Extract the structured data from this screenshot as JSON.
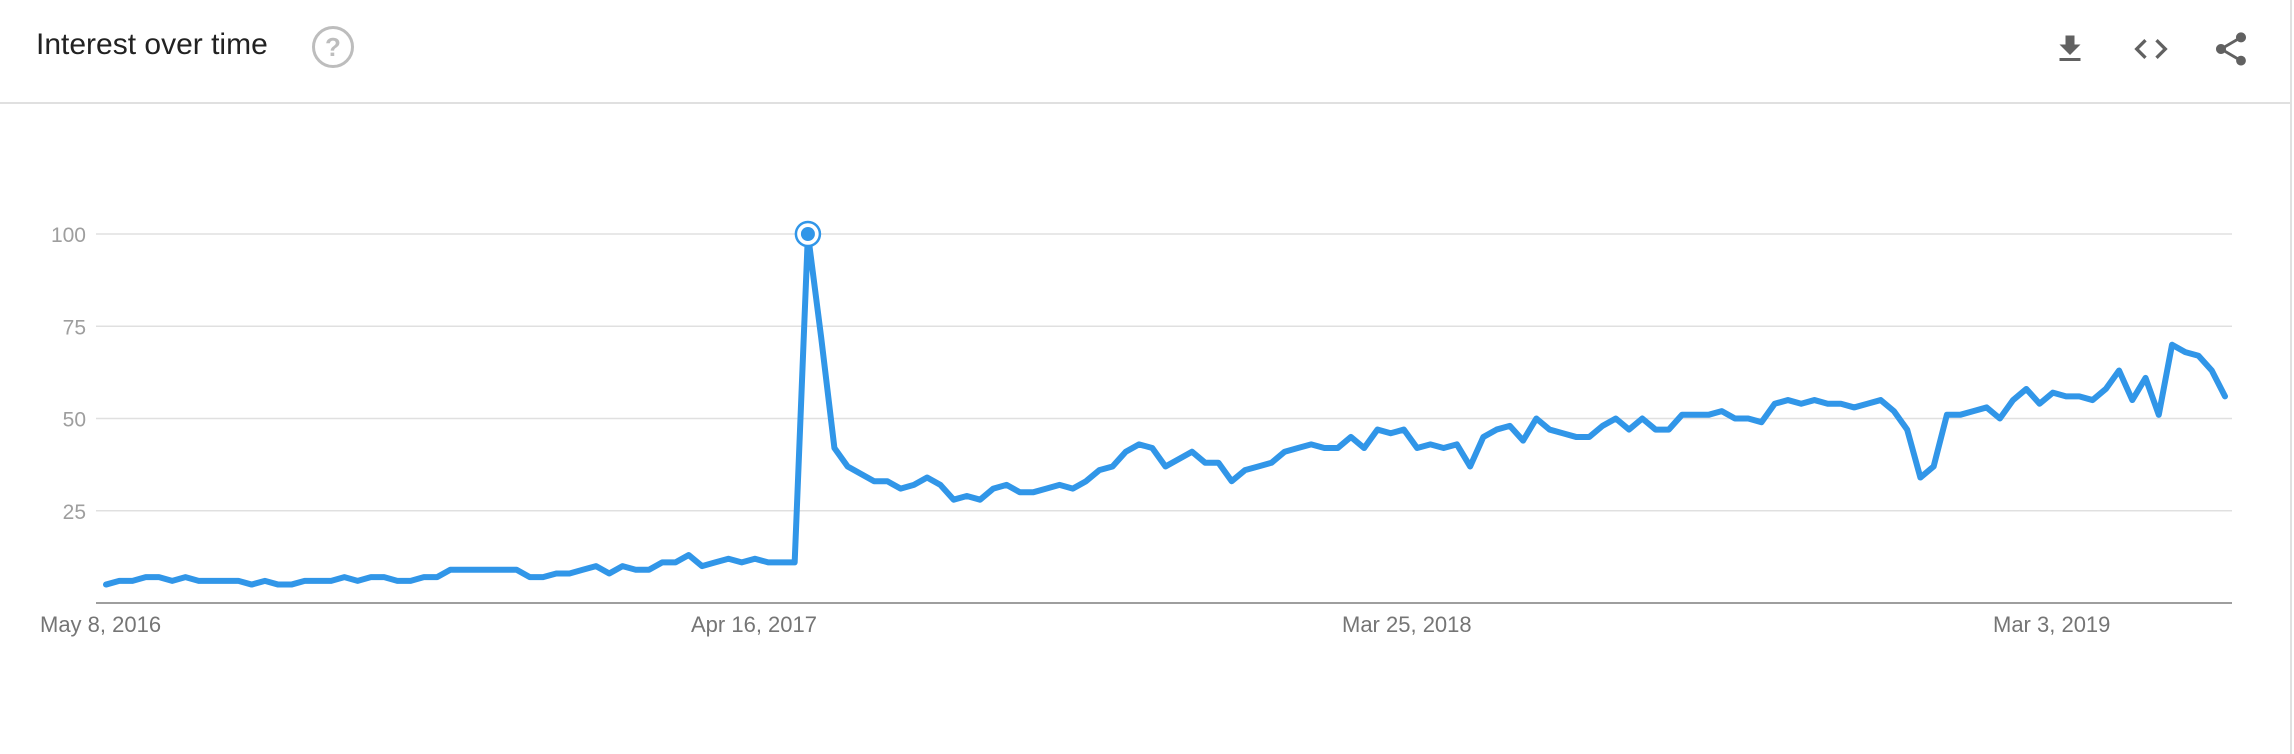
{
  "header": {
    "title": "Interest over time",
    "help_icon": "help-icon",
    "tools": [
      {
        "name": "download-button",
        "icon": "download-icon"
      },
      {
        "name": "embed-button",
        "icon": "embed-code-icon"
      },
      {
        "name": "share-button",
        "icon": "share-icon"
      }
    ]
  },
  "colors": {
    "series": "#3196e8",
    "grid": "#e0e0e0",
    "axis": "#9e9e9e",
    "tick_text": "#9e9e9e",
    "date_text": "#757575"
  },
  "chart_data": {
    "type": "line",
    "title": "Interest over time",
    "xlabel": "",
    "ylabel": "",
    "grid": true,
    "legend": "none",
    "ylim": [
      0,
      100
    ],
    "yticks": [
      25,
      50,
      75,
      100
    ],
    "x_start": "May 8, 2016",
    "x_interval": "weekly",
    "xtick_labels": [
      {
        "label": "May 8, 2016",
        "index": 0
      },
      {
        "label": "Apr 16, 2017",
        "index": 49
      },
      {
        "label": "Mar 25, 2018",
        "index": 98
      },
      {
        "label": "Mar 3, 2019",
        "index": 147
      }
    ],
    "peak_index": 53,
    "series": [
      {
        "values": [
          5,
          6,
          6,
          7,
          7,
          6,
          7,
          6,
          6,
          6,
          6,
          5,
          6,
          5,
          5,
          6,
          6,
          6,
          7,
          6,
          7,
          7,
          6,
          6,
          7,
          7,
          9,
          9,
          9,
          9,
          9,
          9,
          7,
          7,
          8,
          8,
          9,
          10,
          8,
          10,
          9,
          9,
          11,
          11,
          13,
          10,
          11,
          12,
          11,
          12,
          11,
          11,
          11,
          100,
          72,
          42,
          37,
          35,
          33,
          33,
          31,
          32,
          34,
          32,
          28,
          29,
          28,
          31,
          32,
          30,
          30,
          31,
          32,
          31,
          33,
          36,
          37,
          41,
          43,
          42,
          37,
          39,
          41,
          38,
          38,
          33,
          36,
          37,
          38,
          41,
          42,
          43,
          42,
          42,
          45,
          42,
          47,
          46,
          47,
          42,
          43,
          42,
          43,
          37,
          45,
          47,
          48,
          44,
          50,
          47,
          46,
          45,
          45,
          48,
          50,
          47,
          50,
          47,
          47,
          51,
          51,
          51,
          52,
          50,
          50,
          49,
          54,
          55,
          54,
          55,
          54,
          54,
          53,
          54,
          55,
          52,
          47,
          34,
          37,
          51,
          51,
          52,
          53,
          50,
          55,
          58,
          54,
          57,
          56,
          56,
          55,
          58,
          63,
          55,
          61,
          51,
          70,
          68,
          67,
          63,
          56
        ]
      }
    ]
  }
}
